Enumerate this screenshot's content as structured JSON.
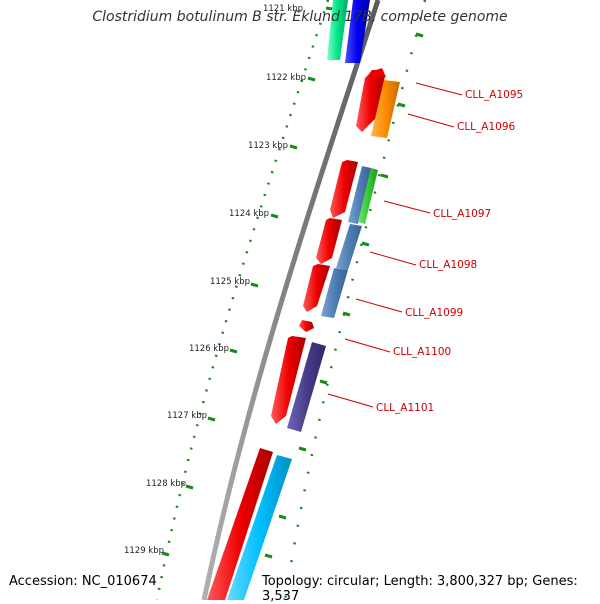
{
  "title": "Clostridium botulinum B str. Eklund 17B, complete genome",
  "footer": {
    "accession": "Accession: NC_010674",
    "summary": "Topology: circular; Length: 3,800,327 bp; Genes: 3,537"
  },
  "axis": {
    "unit": "kbp",
    "ticks": [
      "1121 kbp",
      "1122 kbp",
      "1123 kbp",
      "1124 kbp",
      "1125 kbp",
      "1126 kbp",
      "1127 kbp",
      "1128 kbp",
      "1129 kbp"
    ]
  },
  "gene_labels": [
    "CLL_A1095",
    "CLL_A1096",
    "CLL_A1097",
    "CLL_A1098",
    "CLL_A1099",
    "CLL_A1100",
    "CLL_A1101"
  ],
  "colors": {
    "backbone": "#808080",
    "cds_reverse": "#ee0000",
    "tick_mark": "#1a8a1a",
    "label": "#cc0000",
    "orange": "#ff8c00",
    "steelblue": "#4f7fb5",
    "darkslate": "#483d8b",
    "green": "#33cc33",
    "cyan": "#00bfff",
    "blue": "#0000ee",
    "mint": "#00e68a"
  }
}
